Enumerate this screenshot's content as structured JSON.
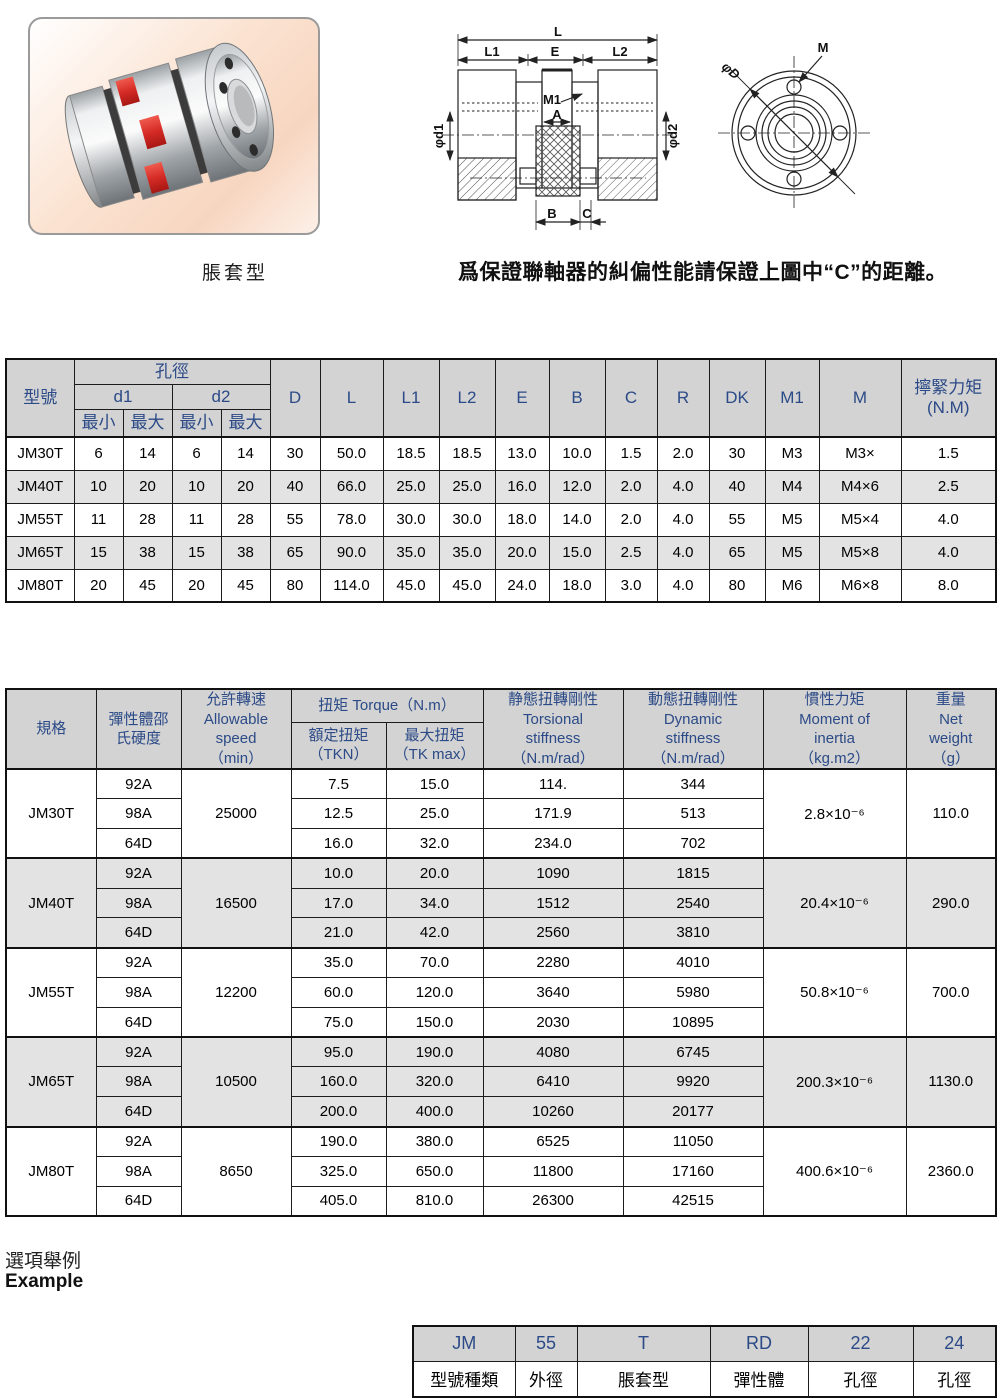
{
  "photo": {
    "caption": "脹套型"
  },
  "note": "爲保證聯軸器的糾偏性能請保證上圖中“C”的距離。",
  "drawing": {
    "labels": {
      "L": "L",
      "L1": "L1",
      "E": "E",
      "L2": "L2",
      "M1": "M1",
      "A": "A",
      "B": "B",
      "C": "C",
      "phi_d1": "φd1",
      "phi_d2": "φd2",
      "M": "M",
      "phi_D": "φD"
    }
  },
  "dim_table": {
    "headers": {
      "model": "型號",
      "bore": "孔徑",
      "d1": "d1",
      "d2": "d2",
      "min": "最小",
      "max": "最大",
      "cols": [
        "D",
        "L",
        "L1",
        "L2",
        "E",
        "B",
        "C",
        "R",
        "DK",
        "M1",
        "M"
      ],
      "tighten": "擰緊力矩\n(N.M)"
    },
    "rows": [
      {
        "cells": [
          "JM30T",
          "6",
          "14",
          "6",
          "14",
          "30",
          "50.0",
          "18.5",
          "18.5",
          "13.0",
          "10.0",
          "1.5",
          "2.0",
          "30",
          "M3",
          "M3×",
          "1.5"
        ]
      },
      {
        "cells": [
          "JM40T",
          "10",
          "20",
          "10",
          "20",
          "40",
          "66.0",
          "25.0",
          "25.0",
          "16.0",
          "12.0",
          "2.0",
          "4.0",
          "40",
          "M4",
          "M4×6",
          "2.5"
        ]
      },
      {
        "cells": [
          "JM55T",
          "11",
          "28",
          "11",
          "28",
          "55",
          "78.0",
          "30.0",
          "30.0",
          "18.0",
          "14.0",
          "2.0",
          "4.0",
          "55",
          "M5",
          "M5×4",
          "4.0"
        ]
      },
      {
        "cells": [
          "JM65T",
          "15",
          "38",
          "15",
          "38",
          "65",
          "90.0",
          "35.0",
          "35.0",
          "20.0",
          "15.0",
          "2.5",
          "4.0",
          "65",
          "M5",
          "M5×8",
          "4.0"
        ]
      },
      {
        "cells": [
          "JM80T",
          "20",
          "45",
          "20",
          "45",
          "80",
          "114.0",
          "45.0",
          "45.0",
          "24.0",
          "18.0",
          "3.0",
          "4.0",
          "80",
          "M6",
          "M6×8",
          "8.0"
        ]
      }
    ]
  },
  "spec_table": {
    "headers": {
      "spec": "規格",
      "hardness": "彈性體邵\n氏硬度",
      "speed": "允許轉速\nAllowable\nspeed\n（min）",
      "torque_group": "扭矩  Torque（N.m）",
      "tkn": "額定扭矩\n（TKN）",
      "tkmax": "最大扭矩\n（TK max）",
      "static": "静態扭轉剛性\nTorsional\nstiffness\n（N.m/rad）",
      "dynamic": "動態扭轉剛性\nDynamic\nstiffness\n（N.m/rad）",
      "inertia": "慣性力矩\nMoment of\ninertia\n（kg.m2）",
      "weight": "重量\nNet\nweight\n（g）"
    },
    "groups": [
      {
        "model": "JM30T",
        "speed": "25000",
        "inertia": "2.8×10⁻⁶",
        "weight": "110.0",
        "rows": [
          {
            "hardness": "92A",
            "tkn": "7.5",
            "tkmax": "15.0",
            "ts": "114.",
            "ds": "344"
          },
          {
            "hardness": "98A",
            "tkn": "12.5",
            "tkmax": "25.0",
            "ts": "171.9",
            "ds": "513"
          },
          {
            "hardness": "64D",
            "tkn": "16.0",
            "tkmax": "32.0",
            "ts": "234.0",
            "ds": "702"
          }
        ]
      },
      {
        "model": "JM40T",
        "speed": "16500",
        "inertia": "20.4×10⁻⁶",
        "weight": "290.0",
        "rows": [
          {
            "hardness": "92A",
            "tkn": "10.0",
            "tkmax": "20.0",
            "ts": "1090",
            "ds": "1815"
          },
          {
            "hardness": "98A",
            "tkn": "17.0",
            "tkmax": "34.0",
            "ts": "1512",
            "ds": "2540"
          },
          {
            "hardness": "64D",
            "tkn": "21.0",
            "tkmax": "42.0",
            "ts": "2560",
            "ds": "3810"
          }
        ]
      },
      {
        "model": "JM55T",
        "speed": "12200",
        "inertia": "50.8×10⁻⁶",
        "weight": "700.0",
        "rows": [
          {
            "hardness": "92A",
            "tkn": "35.0",
            "tkmax": "70.0",
            "ts": "2280",
            "ds": "4010"
          },
          {
            "hardness": "98A",
            "tkn": "60.0",
            "tkmax": "120.0",
            "ts": "3640",
            "ds": "5980"
          },
          {
            "hardness": "64D",
            "tkn": "75.0",
            "tkmax": "150.0",
            "ts": "2030",
            "ds": "10895"
          }
        ]
      },
      {
        "model": "JM65T",
        "speed": "10500",
        "inertia": "200.3×10⁻⁶",
        "weight": "1130.0",
        "rows": [
          {
            "hardness": "92A",
            "tkn": "95.0",
            "tkmax": "190.0",
            "ts": "4080",
            "ds": "6745"
          },
          {
            "hardness": "98A",
            "tkn": "160.0",
            "tkmax": "320.0",
            "ts": "6410",
            "ds": "9920"
          },
          {
            "hardness": "64D",
            "tkn": "200.0",
            "tkmax": "400.0",
            "ts": "10260",
            "ds": "20177"
          }
        ]
      },
      {
        "model": "JM80T",
        "speed": "8650",
        "inertia": "400.6×10⁻⁶",
        "weight": "2360.0",
        "rows": [
          {
            "hardness": "92A",
            "tkn": "190.0",
            "tkmax": "380.0",
            "ts": "6525",
            "ds": "11050"
          },
          {
            "hardness": "98A",
            "tkn": "325.0",
            "tkmax": "650.0",
            "ts": "11800",
            "ds": "17160"
          },
          {
            "hardness": "64D",
            "tkn": "405.0",
            "tkmax": "810.0",
            "ts": "26300",
            "ds": "42515"
          }
        ]
      }
    ]
  },
  "example": {
    "title_zh": "選項舉例",
    "title_en": "Example",
    "cols": [
      {
        "code": "JM",
        "label": "型號種類"
      },
      {
        "code": "55",
        "label": "外徑"
      },
      {
        "code": "T",
        "label": "脹套型"
      },
      {
        "code": "RD",
        "label": "彈性體"
      },
      {
        "code": "22",
        "label": "孔徑"
      },
      {
        "code": "24",
        "label": "孔徑"
      }
    ]
  },
  "colors": {
    "header_bg": "#d3d3d3",
    "header_text": "#2b4a87",
    "alt_row_bg": "#e3e3e3",
    "accent_red": "#d52b26"
  }
}
